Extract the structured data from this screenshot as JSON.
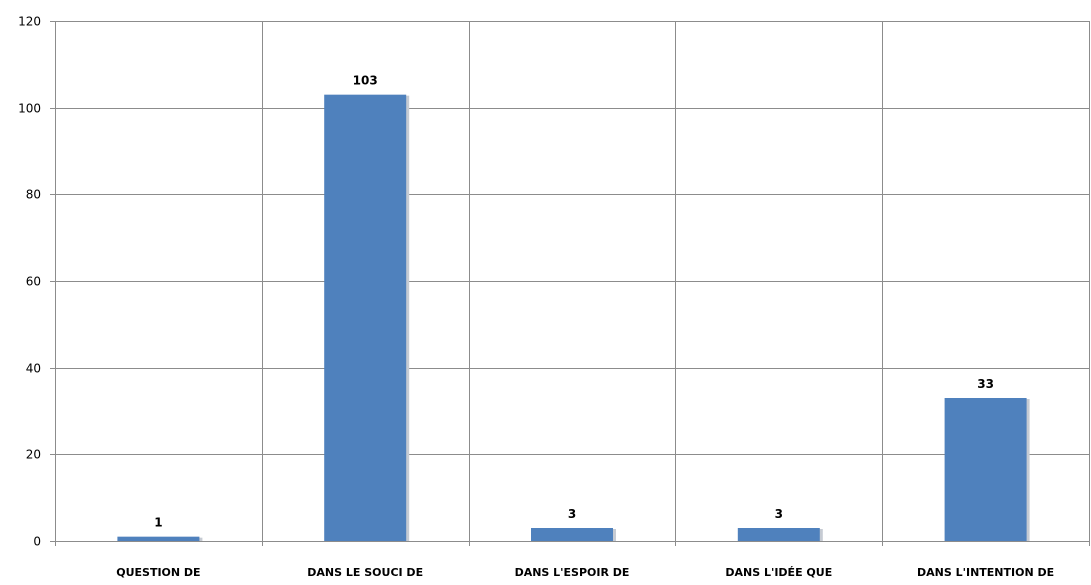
{
  "chart_data": {
    "type": "bar",
    "categories": [
      "QUESTION DE",
      "DANS LE SOUCI DE",
      "DANS L'ESPOIR DE",
      "DANS L'IDÉE QUE",
      "DANS L'INTENTION DE"
    ],
    "values": [
      1,
      103,
      3,
      3,
      33
    ],
    "data_labels": [
      "1",
      "103",
      "3",
      "3",
      "33"
    ],
    "yticks": [
      0,
      20,
      40,
      60,
      80,
      100,
      120
    ],
    "ylim": [
      0,
      120
    ],
    "grid": true,
    "legend": "none",
    "colors": {
      "bar": "#4f81bd",
      "bar_shadow": "#c6cbd3",
      "grid": "#8c8c8c",
      "axis": "#8c8c8c"
    }
  }
}
